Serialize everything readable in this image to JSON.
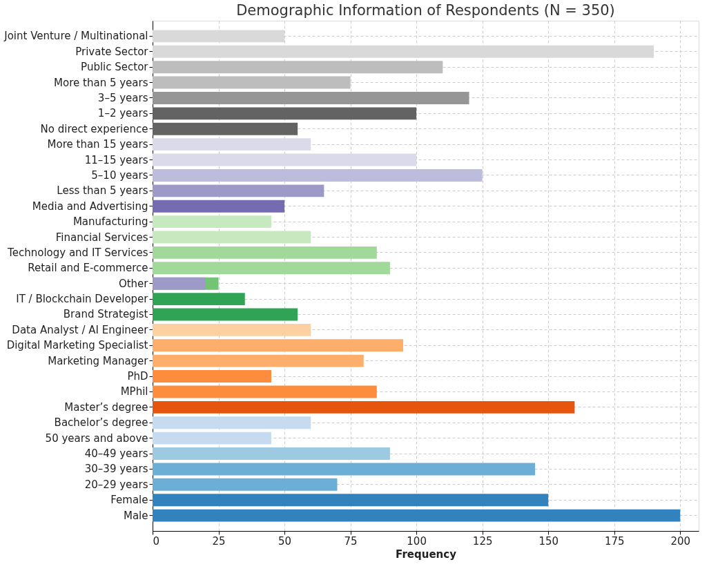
{
  "chart_data": {
    "type": "bar",
    "orientation": "horizontal",
    "title": "Demographic Information of Respondents (N = 350)",
    "xlabel": "Frequency",
    "categories": [
      "Joint Venture / Multinational",
      "Private Sector",
      "Public Sector",
      "More than 5 years",
      "3–5 years",
      "1–2 years",
      "No direct experience",
      "More than 15 years",
      "11–15 years",
      "5–10 years",
      "Less than 5 years",
      "Media and Advertising",
      "Manufacturing",
      "Financial Services",
      "Technology and IT Services",
      "Retail and E-commerce",
      "Other",
      "IT / Blockchain Developer",
      "Brand Strategist",
      "Data Analyst / AI Engineer",
      "Digital Marketing Specialist",
      "Marketing Manager",
      "PhD",
      "MPhil",
      "Master’s degree",
      "Bachelor’s degree",
      "50 years and above",
      "40–49 years",
      "30–39 years",
      "20–29 years",
      "Female",
      "Male"
    ],
    "series": [
      {
        "values": [
          null,
          null,
          null,
          null,
          null,
          null,
          null,
          null,
          null,
          null,
          null,
          null,
          null,
          null,
          null,
          null,
          25,
          null,
          null,
          null,
          null,
          null,
          null,
          null,
          null,
          null,
          null,
          null,
          null,
          null,
          null,
          null
        ],
        "colors": [
          "#74c476",
          "#74c476",
          "#74c476",
          "#74c476",
          "#74c476",
          "#74c476",
          "#74c476",
          "#74c476",
          "#74c476",
          "#74c476",
          "#74c476",
          "#74c476",
          "#74c476",
          "#74c476",
          "#74c476",
          "#74c476",
          "#74c476",
          "#74c476",
          "#74c476",
          "#74c476",
          "#74c476",
          "#74c476",
          "#74c476",
          "#74c476",
          "#74c476",
          "#74c476",
          "#74c476",
          "#74c476",
          "#74c476",
          "#74c476",
          "#74c476",
          "#74c476"
        ]
      },
      {
        "values": [
          50,
          190,
          110,
          75,
          120,
          100,
          55,
          60,
          100,
          125,
          65,
          50,
          45,
          60,
          85,
          90,
          20,
          35,
          55,
          60,
          95,
          80,
          45,
          85,
          160,
          60,
          45,
          90,
          145,
          70,
          150,
          200
        ],
        "colors": [
          "#d9d9d9",
          "#d9d9d9",
          "#bdbdbd",
          "#bdbdbd",
          "#969696",
          "#636363",
          "#636363",
          "#dadaeb",
          "#dadaeb",
          "#bcbddc",
          "#9e9ac8",
          "#756bb1",
          "#c7e9c0",
          "#c7e9c0",
          "#a1d99b",
          "#a1d99b",
          "#9e9ac8",
          "#31a354",
          "#31a354",
          "#fdd0a2",
          "#fdae6b",
          "#fdae6b",
          "#fd8d3c",
          "#fd8d3c",
          "#e6550d",
          "#c6dbef",
          "#c6dbef",
          "#9ecae1",
          "#6baed6",
          "#6baed6",
          "#3182bd",
          "#3182bd"
        ]
      }
    ],
    "xlim": [
      0,
      207
    ],
    "xticks": [
      0,
      25,
      50,
      75,
      100,
      125,
      150,
      175,
      200
    ],
    "grid": true
  }
}
